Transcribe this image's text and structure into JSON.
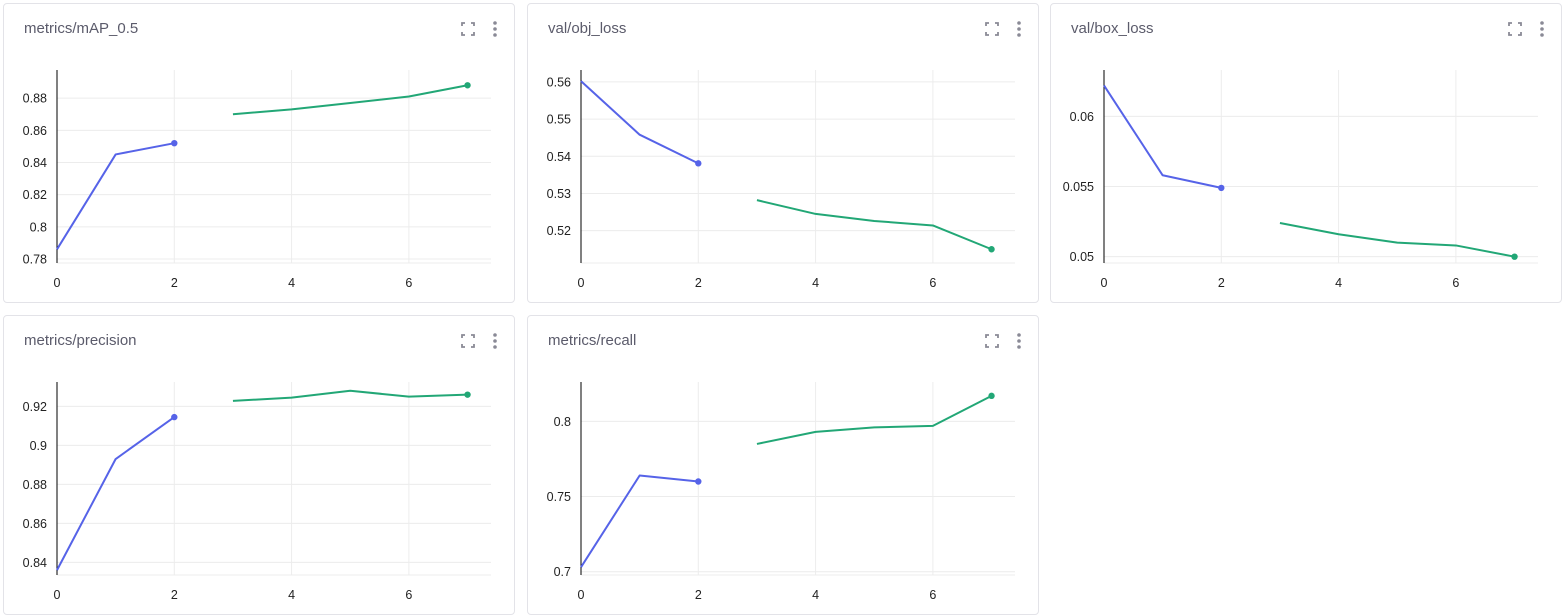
{
  "icons": {
    "expand": "fullscreen-icon",
    "menu": "more-vertical-icon"
  },
  "colors": {
    "run1": "#5663e8",
    "run2": "#22a776",
    "grid": "#ececec",
    "axis": "#000000"
  },
  "chart_data": [
    {
      "type": "line",
      "title": "metrics/mAP_0.5",
      "xlim": [
        0,
        7.4
      ],
      "ylim": [
        0.7775,
        0.8975
      ],
      "xticks": [
        0,
        2,
        4,
        6
      ],
      "yticks": [
        0.78,
        0.8,
        0.82,
        0.84,
        0.86,
        0.88
      ],
      "ytick_labels": [
        "0.78",
        "0.8",
        "0.82",
        "0.84",
        "0.86",
        "0.88"
      ],
      "grid": true,
      "series": [
        {
          "x": [
            0,
            1,
            2
          ],
          "y": [
            0.786,
            0.845,
            0.852
          ]
        },
        {
          "x": [
            3,
            4,
            5,
            6,
            7
          ],
          "y": [
            0.87,
            0.873,
            0.877,
            0.881,
            0.888
          ]
        }
      ]
    },
    {
      "type": "line",
      "title": "val/obj_loss",
      "xlim": [
        0,
        7.4
      ],
      "ylim": [
        0.5113,
        0.5632
      ],
      "xticks": [
        0,
        2,
        4,
        6
      ],
      "yticks": [
        0.52,
        0.53,
        0.54,
        0.55,
        0.56
      ],
      "ytick_labels": [
        "0.52",
        "0.53",
        "0.54",
        "0.55",
        "0.56"
      ],
      "grid": true,
      "series": [
        {
          "x": [
            0,
            1,
            2
          ],
          "y": [
            0.5602,
            0.5458,
            0.5381
          ]
        },
        {
          "x": [
            3,
            4,
            5,
            6,
            7
          ],
          "y": [
            0.5282,
            0.5245,
            0.5226,
            0.5214,
            0.515
          ]
        }
      ]
    },
    {
      "type": "line",
      "title": "val/box_loss",
      "xlim": [
        0,
        7.4
      ],
      "ylim": [
        0.04955,
        0.0633
      ],
      "xticks": [
        0,
        2,
        4,
        6
      ],
      "yticks": [
        0.05,
        0.055,
        0.06
      ],
      "ytick_labels": [
        "0.05",
        "0.055",
        "0.06"
      ],
      "grid": true,
      "series": [
        {
          "x": [
            0,
            1,
            2
          ],
          "y": [
            0.0622,
            0.0558,
            0.0549
          ]
        },
        {
          "x": [
            3,
            4,
            5,
            6,
            7
          ],
          "y": [
            0.0524,
            0.0516,
            0.051,
            0.0508,
            0.05
          ]
        }
      ]
    },
    {
      "type": "line",
      "title": "metrics/precision",
      "xlim": [
        0,
        7.4
      ],
      "ylim": [
        0.8335,
        0.9325
      ],
      "xticks": [
        0,
        2,
        4,
        6
      ],
      "yticks": [
        0.84,
        0.86,
        0.88,
        0.9,
        0.92
      ],
      "ytick_labels": [
        "0.84",
        "0.86",
        "0.88",
        "0.9",
        "0.92"
      ],
      "grid": true,
      "series": [
        {
          "x": [
            0,
            1,
            2
          ],
          "y": [
            0.836,
            0.893,
            0.9145
          ]
        },
        {
          "x": [
            3,
            4,
            5,
            6,
            7
          ],
          "y": [
            0.9228,
            0.9245,
            0.928,
            0.925,
            0.926
          ]
        }
      ]
    },
    {
      "type": "line",
      "title": "metrics/recall",
      "xlim": [
        0,
        7.4
      ],
      "ylim": [
        0.6978,
        0.8262
      ],
      "xticks": [
        0,
        2,
        4,
        6
      ],
      "yticks": [
        0.7,
        0.75,
        0.8
      ],
      "ytick_labels": [
        "0.7",
        "0.75",
        "0.8"
      ],
      "grid": true,
      "series": [
        {
          "x": [
            0,
            1,
            2
          ],
          "y": [
            0.703,
            0.764,
            0.76
          ]
        },
        {
          "x": [
            3,
            4,
            5,
            6,
            7
          ],
          "y": [
            0.785,
            0.793,
            0.796,
            0.797,
            0.817
          ]
        }
      ]
    }
  ]
}
